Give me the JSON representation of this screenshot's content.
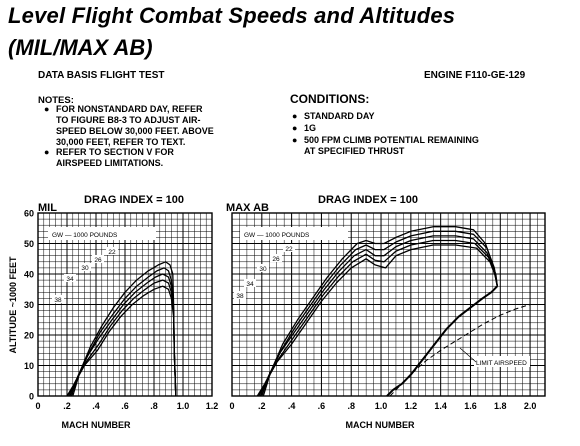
{
  "header": {
    "title": "Level Flight Combat Speeds and Altitudes",
    "subtitle": "(MIL/MAX AB)",
    "data_basis": "DATA BASIS FLIGHT TEST",
    "engine": "ENGINE F110-GE-129"
  },
  "notes": {
    "heading": "NOTES:",
    "items": [
      {
        "lines": [
          "FOR NONSTANDARD DAY, REFER",
          "TO FIGURE B8-3 TO ADJUST AIR-",
          "SPEED BELOW 30,000 FEET. ABOVE",
          "30,000 FEET, REFER TO TEXT."
        ]
      },
      {
        "lines": [
          "REFER TO SECTION V FOR",
          "AIRSPEED LIMITATIONS."
        ]
      }
    ]
  },
  "conditions": {
    "heading": "CONDITIONS:",
    "items": [
      {
        "lines": [
          "STANDARD DAY"
        ]
      },
      {
        "lines": [
          "1G"
        ]
      },
      {
        "lines": [
          "500 FPM CLIMB POTENTIAL REMAINING",
          "AT SPECIFIED THRUST"
        ]
      }
    ]
  },
  "chart_data": [
    {
      "type": "line",
      "panel_label": "MIL",
      "title": "DRAG INDEX = 100",
      "xlabel": "MACH NUMBER",
      "ylabel": "ALTITUDE ~1000 FEET",
      "xlim": [
        0,
        1.2
      ],
      "ylim": [
        0,
        60
      ],
      "x_ticks": [
        0,
        0.2,
        0.4,
        0.6,
        0.8,
        1.0,
        1.2
      ],
      "x_tick_labels": [
        "0",
        ".2",
        ".4",
        ".6",
        ".8",
        "1.0",
        "1.2"
      ],
      "y_ticks": [
        0,
        10,
        20,
        30,
        40,
        50,
        60
      ],
      "grid": true,
      "legend": "GW — 1000 POUNDS",
      "series": [
        {
          "name": "22",
          "x": [
            0.24,
            0.29,
            0.36,
            0.44,
            0.52,
            0.6,
            0.68,
            0.76,
            0.83,
            0.88,
            0.91,
            0.93,
            0.935,
            0.94,
            0.95
          ],
          "y": [
            0,
            8,
            16,
            23,
            29,
            34,
            38,
            41,
            43,
            44,
            43,
            40,
            30,
            15,
            0
          ]
        },
        {
          "name": "26",
          "x": [
            0.23,
            0.28,
            0.35,
            0.43,
            0.52,
            0.6,
            0.68,
            0.76,
            0.82,
            0.87,
            0.9,
            0.92,
            0.935,
            0.94,
            0.95
          ],
          "y": [
            0,
            7,
            14,
            21,
            27,
            32,
            36,
            39,
            41,
            42,
            41,
            38,
            29,
            15,
            0
          ]
        },
        {
          "name": "30",
          "x": [
            0.22,
            0.27,
            0.34,
            0.42,
            0.51,
            0.59,
            0.67,
            0.75,
            0.81,
            0.86,
            0.9,
            0.92,
            0.935,
            0.94,
            0.95
          ],
          "y": [
            0,
            6,
            13,
            19,
            25,
            30,
            34,
            37,
            39,
            40,
            39,
            36,
            28,
            14,
            0
          ]
        },
        {
          "name": "34",
          "x": [
            0.21,
            0.26,
            0.33,
            0.42,
            0.5,
            0.58,
            0.66,
            0.74,
            0.8,
            0.86,
            0.9,
            0.92,
            0.935,
            0.94,
            0.95
          ],
          "y": [
            0,
            5,
            11,
            17,
            23,
            28,
            32,
            35,
            37,
            38,
            37,
            34,
            27,
            14,
            0
          ]
        },
        {
          "name": "38",
          "x": [
            0.2,
            0.25,
            0.32,
            0.41,
            0.49,
            0.57,
            0.65,
            0.73,
            0.8,
            0.86,
            0.9,
            0.92,
            0.935,
            0.94,
            0.95
          ],
          "y": [
            0,
            4,
            10,
            15,
            21,
            26,
            30,
            33,
            35,
            36,
            35,
            32,
            26,
            14,
            0
          ]
        }
      ]
    },
    {
      "type": "line",
      "panel_label": "MAX AB",
      "title": "DRAG INDEX = 100",
      "xlabel": "MACH NUMBER",
      "xlim": [
        0,
        2.1
      ],
      "ylim": [
        0,
        60
      ],
      "x_ticks": [
        0,
        0.2,
        0.4,
        0.6,
        0.8,
        1.0,
        1.2,
        1.4,
        1.6,
        1.8,
        2.0
      ],
      "x_tick_labels": [
        "0",
        ".2",
        ".4",
        ".6",
        ".8",
        "1.0",
        "1.2",
        "1.4",
        "1.6",
        "1.8",
        "2.0"
      ],
      "y_ticks": [
        0,
        10,
        20,
        30,
        40,
        50,
        60
      ],
      "grid": true,
      "legend": "GW — 1000 POUNDS",
      "series": [
        {
          "name": "22",
          "x": [
            0.21,
            0.26,
            0.34,
            0.44,
            0.54,
            0.64,
            0.74,
            0.84,
            0.9,
            0.96,
            1.02,
            1.1,
            1.2,
            1.35,
            1.5,
            1.62,
            1.7,
            1.75,
            1.78
          ],
          "y": [
            0,
            8,
            17,
            25,
            32,
            39,
            45,
            50,
            51,
            50,
            50,
            52,
            54,
            55.5,
            55.5,
            54.5,
            50,
            43,
            36
          ]
        },
        {
          "name": "26",
          "x": [
            0.2,
            0.25,
            0.33,
            0.43,
            0.53,
            0.63,
            0.73,
            0.83,
            0.9,
            0.96,
            1.02,
            1.1,
            1.2,
            1.35,
            1.5,
            1.62,
            1.71,
            1.76,
            1.78
          ],
          "y": [
            0,
            7,
            15,
            23,
            30,
            37,
            43,
            48,
            49.5,
            48,
            48,
            50.5,
            52.5,
            54,
            54,
            53,
            48.5,
            42,
            36
          ]
        },
        {
          "name": "30",
          "x": [
            0.19,
            0.24,
            0.32,
            0.42,
            0.52,
            0.62,
            0.72,
            0.82,
            0.9,
            0.96,
            1.02,
            1.1,
            1.2,
            1.35,
            1.5,
            1.62,
            1.71,
            1.76,
            1.78
          ],
          "y": [
            0,
            6,
            14,
            21,
            28,
            35,
            41,
            46,
            48,
            46,
            46,
            49,
            51,
            52.5,
            52.5,
            51.5,
            47,
            41,
            36
          ]
        },
        {
          "name": "34",
          "x": [
            0.18,
            0.23,
            0.31,
            0.41,
            0.51,
            0.61,
            0.71,
            0.81,
            0.9,
            0.96,
            1.02,
            1.1,
            1.2,
            1.35,
            1.5,
            1.63,
            1.72,
            1.77,
            1.78
          ],
          "y": [
            0,
            5,
            12,
            19,
            26,
            33,
            39,
            44,
            46.5,
            44.5,
            44,
            47.5,
            49.5,
            51,
            51,
            50,
            45.5,
            40,
            36
          ]
        },
        {
          "name": "38",
          "x": [
            0.17,
            0.22,
            0.3,
            0.4,
            0.5,
            0.6,
            0.7,
            0.8,
            0.9,
            0.96,
            1.03,
            1.1,
            1.2,
            1.35,
            1.5,
            1.64,
            1.73,
            1.77,
            1.78
          ],
          "y": [
            0,
            4,
            11,
            17,
            24,
            31,
            37,
            42,
            45,
            43,
            42,
            46,
            48,
            49.5,
            49.5,
            48.5,
            44,
            39,
            36
          ]
        },
        {
          "name": "",
          "style": "heavy",
          "x": [
            1.04,
            1.08,
            1.14,
            1.2,
            1.28,
            1.36,
            1.44,
            1.52,
            1.6,
            1.68,
            1.74,
            1.78
          ],
          "y": [
            0,
            2,
            4,
            7,
            12,
            17,
            22,
            26,
            29,
            32,
            34,
            36
          ]
        },
        {
          "name": "LIMIT AIRSPEED",
          "style": "dashed",
          "x": [
            1.06,
            1.14,
            1.22,
            1.3,
            1.4,
            1.5,
            1.6,
            1.7,
            1.8,
            1.9,
            2.0
          ],
          "y": [
            0,
            4,
            8,
            11.5,
            15,
            18,
            21,
            24,
            26.5,
            28.5,
            30
          ]
        }
      ]
    }
  ]
}
